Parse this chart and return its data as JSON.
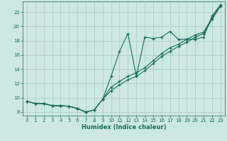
{
  "xlabel": "Humidex (Indice chaleur)",
  "ylabel": "",
  "bg_color": "#cce8e0",
  "grid_color": "#aad0c8",
  "line_color": "#1a6b5a",
  "xlim": [
    -0.5,
    23.5
  ],
  "ylim": [
    7.5,
    23.5
  ],
  "xticks": [
    0,
    1,
    2,
    3,
    4,
    5,
    6,
    7,
    8,
    9,
    10,
    11,
    12,
    13,
    14,
    15,
    16,
    17,
    18,
    19,
    20,
    21,
    22,
    23
  ],
  "yticks": [
    8,
    10,
    12,
    14,
    16,
    18,
    20,
    22
  ],
  "series1_x": [
    0,
    1,
    2,
    3,
    4,
    5,
    6,
    7,
    8,
    9,
    10,
    11,
    12,
    13,
    14,
    15,
    16,
    17,
    18,
    19,
    20,
    21,
    22,
    23
  ],
  "series1_y": [
    9.5,
    9.2,
    9.2,
    8.9,
    8.9,
    8.8,
    8.5,
    8.0,
    8.3,
    9.8,
    13.0,
    16.5,
    19.0,
    13.0,
    18.5,
    18.3,
    18.5,
    19.3,
    18.2,
    18.2,
    18.2,
    18.5,
    21.5,
    23.0
  ],
  "series2_x": [
    0,
    1,
    2,
    3,
    4,
    5,
    6,
    7,
    8,
    9,
    10,
    11,
    12,
    13,
    14,
    15,
    16,
    17,
    18,
    19,
    20,
    21,
    22,
    23
  ],
  "series2_y": [
    9.5,
    9.2,
    9.2,
    8.9,
    8.9,
    8.8,
    8.5,
    8.0,
    8.3,
    9.8,
    11.5,
    12.3,
    13.0,
    13.5,
    14.2,
    15.2,
    16.2,
    17.0,
    17.5,
    18.2,
    18.8,
    19.2,
    21.2,
    23.0
  ],
  "series3_x": [
    0,
    1,
    2,
    3,
    4,
    5,
    6,
    7,
    8,
    9,
    10,
    11,
    12,
    13,
    14,
    15,
    16,
    17,
    18,
    19,
    20,
    21,
    22,
    23
  ],
  "series3_y": [
    9.5,
    9.2,
    9.2,
    8.9,
    8.9,
    8.8,
    8.5,
    8.0,
    8.3,
    9.8,
    11.0,
    11.8,
    12.5,
    13.0,
    13.8,
    14.8,
    15.8,
    16.5,
    17.2,
    17.8,
    18.5,
    19.0,
    21.0,
    22.8
  ]
}
